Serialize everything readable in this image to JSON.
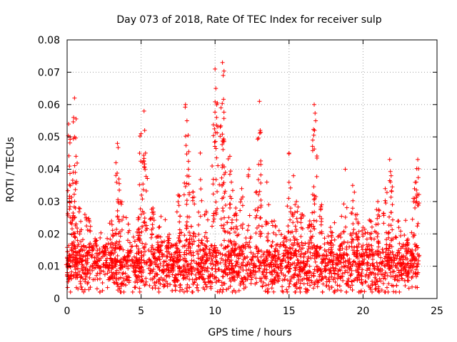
{
  "chart_data": {
    "type": "scatter",
    "title": "Day 073 of 2018, Rate Of TEC Index for receiver sulp",
    "xlabel": "GPS time / hours",
    "ylabel": "ROTI / TECUs",
    "xlim": [
      0,
      25
    ],
    "ylim": [
      0,
      0.08
    ],
    "xticks": [
      0,
      5,
      10,
      15,
      20,
      25
    ],
    "xtick_labels": [
      "0",
      "5",
      "10",
      "15",
      "20",
      "25"
    ],
    "yticks": [
      0,
      0.01,
      0.02,
      0.03,
      0.04,
      0.05,
      0.06,
      0.07,
      0.08
    ],
    "ytick_labels": [
      "0",
      "0.01",
      "0.02",
      "0.03",
      "0.04",
      "0.05",
      "0.06",
      "0.07",
      "0.08"
    ],
    "grid": true,
    "marker": "+",
    "color": "#ff0000",
    "series": [
      {
        "name": "ROTI",
        "x": [
          0.0,
          0.1,
          0.2,
          0.3,
          0.5,
          0.5,
          0.55,
          0.6,
          0.8,
          1.2,
          1.5,
          2.0,
          2.5,
          3.0,
          3.3,
          3.4,
          3.5,
          3.6,
          4.2,
          4.8,
          5.0,
          5.2,
          5.3,
          5.8,
          6.2,
          6.8,
          7.5,
          8.0,
          8.1,
          8.2,
          8.5,
          9.0,
          9.4,
          9.8,
          10.0,
          10.05,
          10.1,
          10.4,
          10.5,
          10.55,
          10.6,
          11.0,
          11.1,
          11.4,
          11.8,
          12.3,
          12.8,
          13.0,
          13.05,
          13.5,
          14.0,
          14.7,
          15.0,
          15.3,
          15.5,
          15.9,
          16.4,
          16.6,
          16.7,
          16.8,
          17.2,
          17.8,
          18.5,
          18.8,
          19.3,
          19.6,
          20.0,
          20.5,
          21.0,
          21.5,
          21.8,
          21.9,
          22.4,
          23.0,
          23.4,
          23.6,
          23.7
        ],
        "y": [
          0.007,
          0.054,
          0.05,
          0.03,
          0.062,
          0.05,
          0.039,
          0.044,
          0.028,
          0.026,
          0.021,
          0.018,
          0.016,
          0.024,
          0.042,
          0.048,
          0.037,
          0.03,
          0.021,
          0.025,
          0.051,
          0.058,
          0.045,
          0.028,
          0.022,
          0.018,
          0.032,
          0.06,
          0.055,
          0.04,
          0.033,
          0.045,
          0.027,
          0.041,
          0.071,
          0.065,
          0.056,
          0.059,
          0.073,
          0.069,
          0.049,
          0.044,
          0.036,
          0.028,
          0.034,
          0.04,
          0.033,
          0.061,
          0.052,
          0.036,
          0.024,
          0.019,
          0.045,
          0.038,
          0.03,
          0.026,
          0.024,
          0.049,
          0.06,
          0.055,
          0.029,
          0.022,
          0.02,
          0.04,
          0.035,
          0.026,
          0.022,
          0.024,
          0.03,
          0.034,
          0.043,
          0.038,
          0.024,
          0.018,
          0.031,
          0.036,
          0.043
        ],
        "baseline_band": {
          "min": 0.002,
          "max": 0.022,
          "typical": 0.01,
          "x_range": [
            0,
            23.8
          ]
        }
      }
    ]
  }
}
